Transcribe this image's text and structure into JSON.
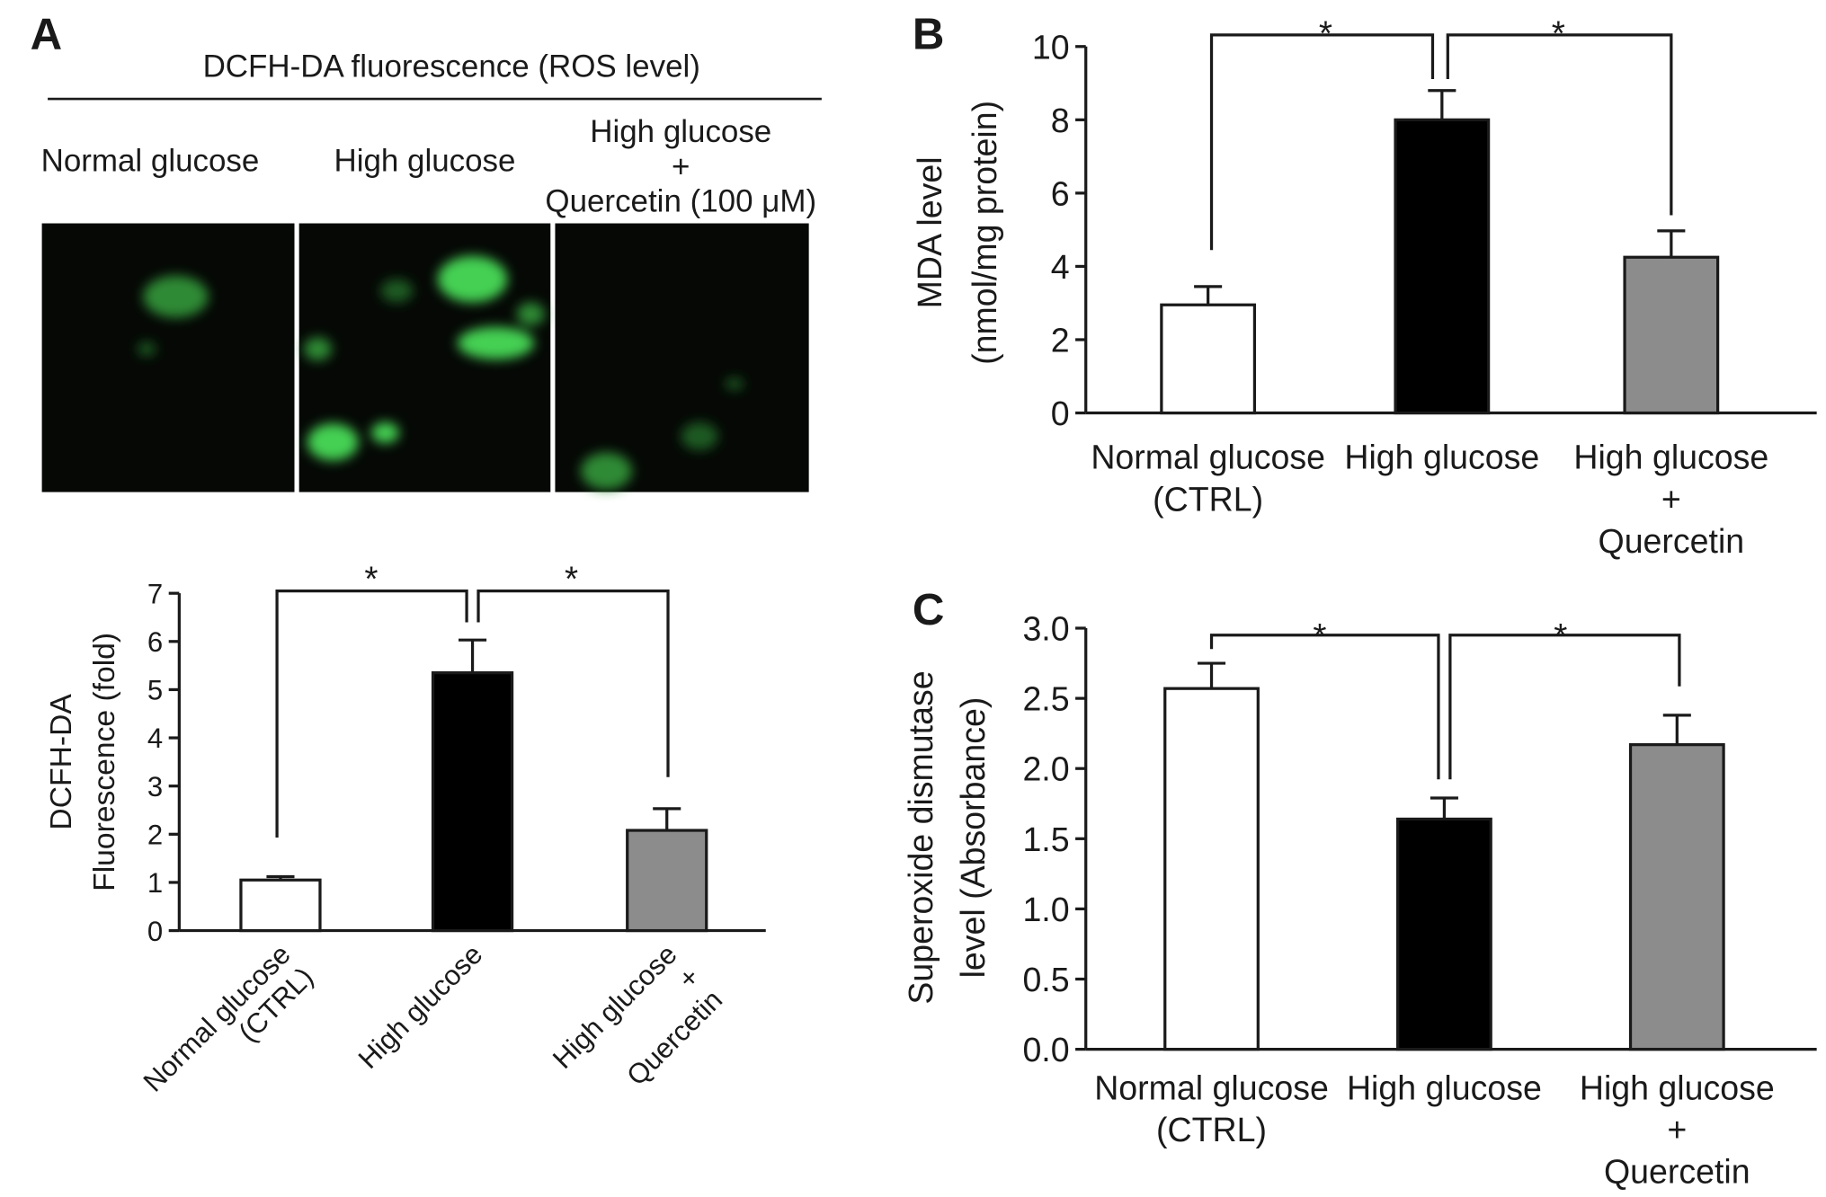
{
  "panel_labels": [
    "A",
    "B",
    "C"
  ],
  "fluorescence": {
    "title": "DCFH-DA fluorescence (ROS level)",
    "columns": [
      "Normal glucose",
      "High glucose",
      "High glucose\n+\nQuercetin (100 μM)"
    ]
  },
  "chart_data": [
    {
      "type": "bar",
      "y_label": "DCFH-DA\nFluorescence (fold)",
      "categories": [
        "Normal glucose\n(CTRL)",
        "High glucose",
        "High glucose\n+\nQuercetin"
      ],
      "values": [
        1.05,
        5.35,
        2.08
      ],
      "errors": [
        0.07,
        0.68,
        0.45
      ],
      "colors": [
        "#ffffff",
        "#000000",
        "#8c8c8c"
      ],
      "ylim": [
        0,
        7
      ],
      "yticks": [
        0,
        1,
        2,
        3,
        4,
        5,
        6,
        7
      ],
      "annotations": [
        "*",
        "*"
      ]
    },
    {
      "type": "bar",
      "y_label": "MDA level\n(nmol/mg protein)",
      "categories": [
        "Normal glucose\n(CTRL)",
        "High glucose",
        "High glucose\n+\nQuercetin"
      ],
      "values": [
        2.95,
        8.0,
        4.25
      ],
      "errors": [
        0.5,
        0.8,
        0.72
      ],
      "colors": [
        "#ffffff",
        "#000000",
        "#8c8c8c"
      ],
      "ylim": [
        0,
        10
      ],
      "yticks": [
        0,
        2,
        4,
        6,
        8,
        10
      ],
      "annotations": [
        "*",
        "*"
      ]
    },
    {
      "type": "bar",
      "y_label": "Superoxide dismutase\nlevel (Absorbance)",
      "categories": [
        "Normal glucose\n(CTRL)",
        "High glucose",
        "High glucose\n+\nQuercetin"
      ],
      "values": [
        2.57,
        1.64,
        2.17
      ],
      "errors": [
        0.18,
        0.15,
        0.21
      ],
      "colors": [
        "#ffffff",
        "#000000",
        "#8c8c8c"
      ],
      "ylim": [
        0,
        3
      ],
      "yticks": [
        {
          "value": 0,
          "label": "0.0"
        },
        0.5,
        {
          "value": 1,
          "label": "1.0"
        },
        1.5,
        {
          "value": 2,
          "label": "2.0"
        },
        2.5,
        {
          "value": 3,
          "label": "3.0"
        }
      ],
      "annotations": [
        "*",
        "*"
      ]
    }
  ]
}
